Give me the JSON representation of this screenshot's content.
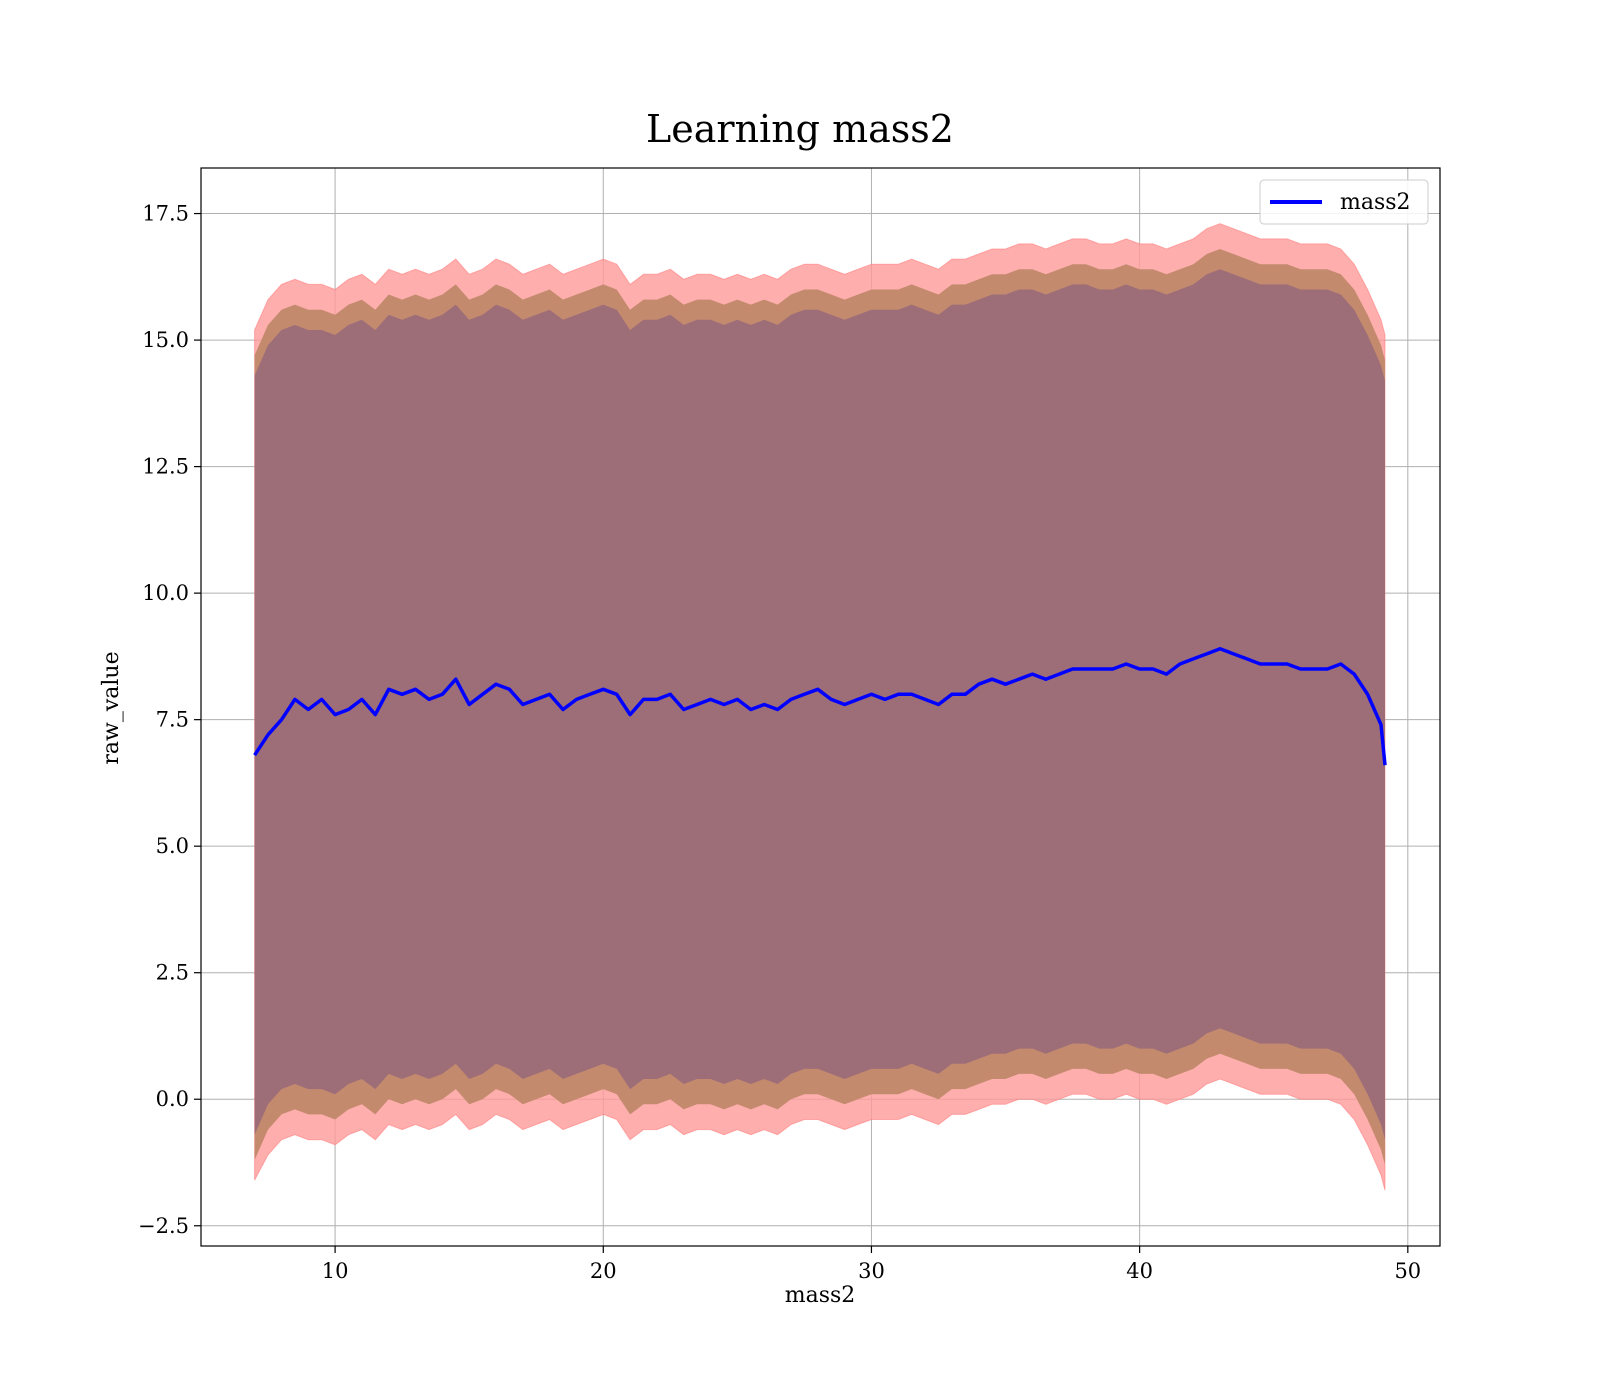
{
  "chart_data": {
    "type": "area",
    "title": "Learning mass2",
    "xlabel": "mass2",
    "ylabel": "raw_value",
    "xlim": [
      5,
      51.2
    ],
    "ylim": [
      -2.9,
      18.4
    ],
    "x_ticks": [
      10,
      20,
      30,
      40,
      50
    ],
    "y_ticks": [
      -2.5,
      0.0,
      2.5,
      5.0,
      7.5,
      10.0,
      12.5,
      15.0,
      17.5
    ],
    "grid": true,
    "legend": {
      "position": "top-right",
      "entries": [
        "mass2"
      ]
    },
    "colors": {
      "line": "#0000ff",
      "band_outer": "#ff9a9a",
      "band_middle": "#c48a6e",
      "band_inner": "#9e6e78",
      "grid": "#b0b0b0",
      "axes": "#000000"
    },
    "x": [
      7.0,
      7.5,
      8.0,
      8.5,
      9.0,
      9.5,
      10.0,
      10.5,
      11.0,
      11.5,
      12.0,
      12.5,
      13.0,
      13.5,
      14.0,
      14.5,
      15.0,
      15.5,
      16.0,
      16.5,
      17.0,
      17.5,
      18.0,
      18.5,
      19.0,
      19.5,
      20.0,
      20.5,
      21.0,
      21.5,
      22.0,
      22.5,
      23.0,
      23.5,
      24.0,
      24.5,
      25.0,
      25.5,
      26.0,
      26.5,
      27.0,
      27.5,
      28.0,
      28.5,
      29.0,
      29.5,
      30.0,
      30.5,
      31.0,
      31.5,
      32.0,
      32.5,
      33.0,
      33.5,
      34.0,
      34.5,
      35.0,
      35.5,
      36.0,
      36.5,
      37.0,
      37.5,
      38.0,
      38.5,
      39.0,
      39.5,
      40.0,
      40.5,
      41.0,
      41.5,
      42.0,
      42.5,
      43.0,
      43.5,
      44.0,
      44.5,
      45.0,
      45.5,
      46.0,
      46.5,
      47.0,
      47.5,
      48.0,
      48.5,
      49.0,
      49.15
    ],
    "series": [
      {
        "name": "mass2",
        "values": [
          6.8,
          7.2,
          7.5,
          7.9,
          7.7,
          7.9,
          7.6,
          7.7,
          7.9,
          7.6,
          8.1,
          8.0,
          8.1,
          7.9,
          8.0,
          8.3,
          7.8,
          8.0,
          8.2,
          8.1,
          7.8,
          7.9,
          8.0,
          7.7,
          7.9,
          8.0,
          8.1,
          8.0,
          7.6,
          7.9,
          7.9,
          8.0,
          7.7,
          7.8,
          7.9,
          7.8,
          7.9,
          7.7,
          7.8,
          7.7,
          7.9,
          8.0,
          8.1,
          7.9,
          7.8,
          7.9,
          8.0,
          7.9,
          8.0,
          8.0,
          7.9,
          7.8,
          8.0,
          8.0,
          8.2,
          8.3,
          8.2,
          8.3,
          8.4,
          8.3,
          8.4,
          8.5,
          8.5,
          8.5,
          8.5,
          8.6,
          8.5,
          8.5,
          8.4,
          8.6,
          8.7,
          8.8,
          8.9,
          8.8,
          8.7,
          8.6,
          8.6,
          8.6,
          8.5,
          8.5,
          8.5,
          8.6,
          8.4,
          8.0,
          7.4,
          6.6
        ]
      }
    ],
    "bands": {
      "outer_lower": [
        -1.6,
        -1.1,
        -0.8,
        -0.7,
        -0.8,
        -0.8,
        -0.9,
        -0.7,
        -0.6,
        -0.8,
        -0.5,
        -0.6,
        -0.5,
        -0.6,
        -0.5,
        -0.3,
        -0.6,
        -0.5,
        -0.3,
        -0.4,
        -0.6,
        -0.5,
        -0.4,
        -0.6,
        -0.5,
        -0.4,
        -0.3,
        -0.4,
        -0.8,
        -0.6,
        -0.6,
        -0.5,
        -0.7,
        -0.6,
        -0.6,
        -0.7,
        -0.6,
        -0.7,
        -0.6,
        -0.7,
        -0.5,
        -0.4,
        -0.4,
        -0.5,
        -0.6,
        -0.5,
        -0.4,
        -0.4,
        -0.4,
        -0.3,
        -0.4,
        -0.5,
        -0.3,
        -0.3,
        -0.2,
        -0.1,
        -0.1,
        0.0,
        0.0,
        -0.1,
        0.0,
        0.1,
        0.1,
        0.0,
        0.0,
        0.1,
        0.0,
        0.0,
        -0.1,
        0.0,
        0.1,
        0.3,
        0.4,
        0.3,
        0.2,
        0.1,
        0.1,
        0.1,
        0.0,
        0.0,
        0.0,
        -0.1,
        -0.4,
        -0.9,
        -1.5,
        -1.8
      ],
      "middle_lower": [
        -1.2,
        -0.6,
        -0.3,
        -0.2,
        -0.3,
        -0.3,
        -0.4,
        -0.2,
        -0.1,
        -0.3,
        0.0,
        -0.1,
        0.0,
        -0.1,
        0.0,
        0.2,
        -0.1,
        0.0,
        0.2,
        0.1,
        -0.1,
        0.0,
        0.1,
        -0.1,
        0.0,
        0.1,
        0.2,
        0.1,
        -0.3,
        -0.1,
        -0.1,
        0.0,
        -0.2,
        -0.1,
        -0.1,
        -0.2,
        -0.1,
        -0.2,
        -0.1,
        -0.2,
        0.0,
        0.1,
        0.1,
        0.0,
        -0.1,
        0.0,
        0.1,
        0.1,
        0.1,
        0.2,
        0.1,
        0.0,
        0.2,
        0.2,
        0.3,
        0.4,
        0.4,
        0.5,
        0.5,
        0.4,
        0.5,
        0.6,
        0.6,
        0.5,
        0.5,
        0.6,
        0.5,
        0.5,
        0.4,
        0.5,
        0.6,
        0.8,
        0.9,
        0.8,
        0.7,
        0.6,
        0.6,
        0.6,
        0.5,
        0.5,
        0.5,
        0.4,
        0.1,
        -0.4,
        -1.0,
        -1.3
      ],
      "inner_lower": [
        -0.7,
        -0.1,
        0.2,
        0.3,
        0.2,
        0.2,
        0.1,
        0.3,
        0.4,
        0.2,
        0.5,
        0.4,
        0.5,
        0.4,
        0.5,
        0.7,
        0.4,
        0.5,
        0.7,
        0.6,
        0.4,
        0.5,
        0.6,
        0.4,
        0.5,
        0.6,
        0.7,
        0.6,
        0.2,
        0.4,
        0.4,
        0.5,
        0.3,
        0.4,
        0.4,
        0.3,
        0.4,
        0.3,
        0.4,
        0.3,
        0.5,
        0.6,
        0.6,
        0.5,
        0.4,
        0.5,
        0.6,
        0.6,
        0.6,
        0.7,
        0.6,
        0.5,
        0.7,
        0.7,
        0.8,
        0.9,
        0.9,
        1.0,
        1.0,
        0.9,
        1.0,
        1.1,
        1.1,
        1.0,
        1.0,
        1.1,
        1.0,
        1.0,
        0.9,
        1.0,
        1.1,
        1.3,
        1.4,
        1.3,
        1.2,
        1.1,
        1.1,
        1.1,
        1.0,
        1.0,
        1.0,
        0.9,
        0.6,
        0.1,
        -0.5,
        -0.8
      ],
      "inner_upper": [
        14.3,
        14.9,
        15.2,
        15.3,
        15.2,
        15.2,
        15.1,
        15.3,
        15.4,
        15.2,
        15.5,
        15.4,
        15.5,
        15.4,
        15.5,
        15.7,
        15.4,
        15.5,
        15.7,
        15.6,
        15.4,
        15.5,
        15.6,
        15.4,
        15.5,
        15.6,
        15.7,
        15.6,
        15.2,
        15.4,
        15.4,
        15.5,
        15.3,
        15.4,
        15.4,
        15.3,
        15.4,
        15.3,
        15.4,
        15.3,
        15.5,
        15.6,
        15.6,
        15.5,
        15.4,
        15.5,
        15.6,
        15.6,
        15.6,
        15.7,
        15.6,
        15.5,
        15.7,
        15.7,
        15.8,
        15.9,
        15.9,
        16.0,
        16.0,
        15.9,
        16.0,
        16.1,
        16.1,
        16.0,
        16.0,
        16.1,
        16.0,
        16.0,
        15.9,
        16.0,
        16.1,
        16.3,
        16.4,
        16.3,
        16.2,
        16.1,
        16.1,
        16.1,
        16.0,
        16.0,
        16.0,
        15.9,
        15.6,
        15.1,
        14.5,
        14.2
      ],
      "middle_upper": [
        14.7,
        15.3,
        15.6,
        15.7,
        15.6,
        15.6,
        15.5,
        15.7,
        15.8,
        15.6,
        15.9,
        15.8,
        15.9,
        15.8,
        15.9,
        16.1,
        15.8,
        15.9,
        16.1,
        16.0,
        15.8,
        15.9,
        16.0,
        15.8,
        15.9,
        16.0,
        16.1,
        16.0,
        15.6,
        15.8,
        15.8,
        15.9,
        15.7,
        15.8,
        15.8,
        15.7,
        15.8,
        15.7,
        15.8,
        15.7,
        15.9,
        16.0,
        16.0,
        15.9,
        15.8,
        15.9,
        16.0,
        16.0,
        16.0,
        16.1,
        16.0,
        15.9,
        16.1,
        16.1,
        16.2,
        16.3,
        16.3,
        16.4,
        16.4,
        16.3,
        16.4,
        16.5,
        16.5,
        16.4,
        16.4,
        16.5,
        16.4,
        16.4,
        16.3,
        16.4,
        16.5,
        16.7,
        16.8,
        16.7,
        16.6,
        16.5,
        16.5,
        16.5,
        16.4,
        16.4,
        16.4,
        16.3,
        16.0,
        15.5,
        14.9,
        14.6
      ],
      "outer_upper": [
        15.2,
        15.8,
        16.1,
        16.2,
        16.1,
        16.1,
        16.0,
        16.2,
        16.3,
        16.1,
        16.4,
        16.3,
        16.4,
        16.3,
        16.4,
        16.6,
        16.3,
        16.4,
        16.6,
        16.5,
        16.3,
        16.4,
        16.5,
        16.3,
        16.4,
        16.5,
        16.6,
        16.5,
        16.1,
        16.3,
        16.3,
        16.4,
        16.2,
        16.3,
        16.3,
        16.2,
        16.3,
        16.2,
        16.3,
        16.2,
        16.4,
        16.5,
        16.5,
        16.4,
        16.3,
        16.4,
        16.5,
        16.5,
        16.5,
        16.6,
        16.5,
        16.4,
        16.6,
        16.6,
        16.7,
        16.8,
        16.8,
        16.9,
        16.9,
        16.8,
        16.9,
        17.0,
        17.0,
        16.9,
        16.9,
        17.0,
        16.9,
        16.9,
        16.8,
        16.9,
        17.0,
        17.2,
        17.3,
        17.2,
        17.1,
        17.0,
        17.0,
        17.0,
        16.9,
        16.9,
        16.9,
        16.8,
        16.5,
        16.0,
        15.4,
        15.1
      ]
    }
  }
}
